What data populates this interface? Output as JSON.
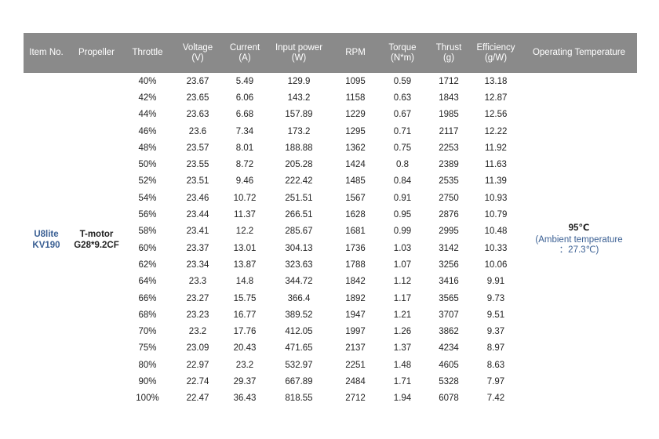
{
  "headers": [
    {
      "name": "Item No.",
      "unit": ""
    },
    {
      "name": "Propeller",
      "unit": ""
    },
    {
      "name": "Throttle",
      "unit": ""
    },
    {
      "name": "Voltage",
      "unit": "(V)"
    },
    {
      "name": "Current",
      "unit": "(A)"
    },
    {
      "name": "Input power",
      "unit": "(W)"
    },
    {
      "name": "RPM",
      "unit": ""
    },
    {
      "name": "Torque",
      "unit": "(N*m)"
    },
    {
      "name": "Thrust",
      "unit": "(g)"
    },
    {
      "name": "Efficiency",
      "unit": "(g/W)"
    },
    {
      "name": "Operating Temperature",
      "unit": ""
    }
  ],
  "item": {
    "line1": "U8lite",
    "line2": "KV190"
  },
  "propeller": {
    "line1": "T-motor",
    "line2": "G28*9.2CF"
  },
  "temperature": {
    "value": "95℃",
    "note1": "(Ambient temperature",
    "note2": "：27.3℃)"
  },
  "rows": [
    [
      "40%",
      "23.67",
      "5.49",
      "129.9",
      "1095",
      "0.59",
      "1712",
      "13.18"
    ],
    [
      "42%",
      "23.65",
      "6.06",
      "143.2",
      "1158",
      "0.63",
      "1843",
      "12.87"
    ],
    [
      "44%",
      "23.63",
      "6.68",
      "157.89",
      "1229",
      "0.67",
      "1985",
      "12.56"
    ],
    [
      "46%",
      "23.6",
      "7.34",
      "173.2",
      "1295",
      "0.71",
      "2117",
      "12.22"
    ],
    [
      "48%",
      "23.57",
      "8.01",
      "188.88",
      "1362",
      "0.75",
      "2253",
      "11.92"
    ],
    [
      "50%",
      "23.55",
      "8.72",
      "205.28",
      "1424",
      "0.8",
      "2389",
      "11.63"
    ],
    [
      "52%",
      "23.51",
      "9.46",
      "222.42",
      "1485",
      "0.84",
      "2535",
      "11.39"
    ],
    [
      "54%",
      "23.46",
      "10.72",
      "251.51",
      "1567",
      "0.91",
      "2750",
      "10.93"
    ],
    [
      "56%",
      "23.44",
      "11.37",
      "266.51",
      "1628",
      "0.95",
      "2876",
      "10.79"
    ],
    [
      "58%",
      "23.41",
      "12.2",
      "285.67",
      "1681",
      "0.99",
      "2995",
      "10.48"
    ],
    [
      "60%",
      "23.37",
      "13.01",
      "304.13",
      "1736",
      "1.03",
      "3142",
      "10.33"
    ],
    [
      "62%",
      "23.34",
      "13.87",
      "323.63",
      "1788",
      "1.07",
      "3256",
      "10.06"
    ],
    [
      "64%",
      "23.3",
      "14.8",
      "344.72",
      "1842",
      "1.12",
      "3416",
      "9.91"
    ],
    [
      "66%",
      "23.27",
      "15.75",
      "366.4",
      "1892",
      "1.17",
      "3565",
      "9.73"
    ],
    [
      "68%",
      "23.23",
      "16.77",
      "389.52",
      "1947",
      "1.21",
      "3707",
      "9.51"
    ],
    [
      "70%",
      "23.2",
      "17.76",
      "412.05",
      "1997",
      "1.26",
      "3862",
      "9.37"
    ],
    [
      "75%",
      "23.09",
      "20.43",
      "471.65",
      "2137",
      "1.37",
      "4234",
      "8.97"
    ],
    [
      "80%",
      "22.97",
      "23.2",
      "532.97",
      "2251",
      "1.48",
      "4605",
      "8.63"
    ],
    [
      "90%",
      "22.74",
      "29.37",
      "667.89",
      "2484",
      "1.71",
      "5328",
      "7.97"
    ],
    [
      "100%",
      "22.47",
      "36.43",
      "818.55",
      "2712",
      "1.94",
      "6078",
      "7.42"
    ]
  ]
}
